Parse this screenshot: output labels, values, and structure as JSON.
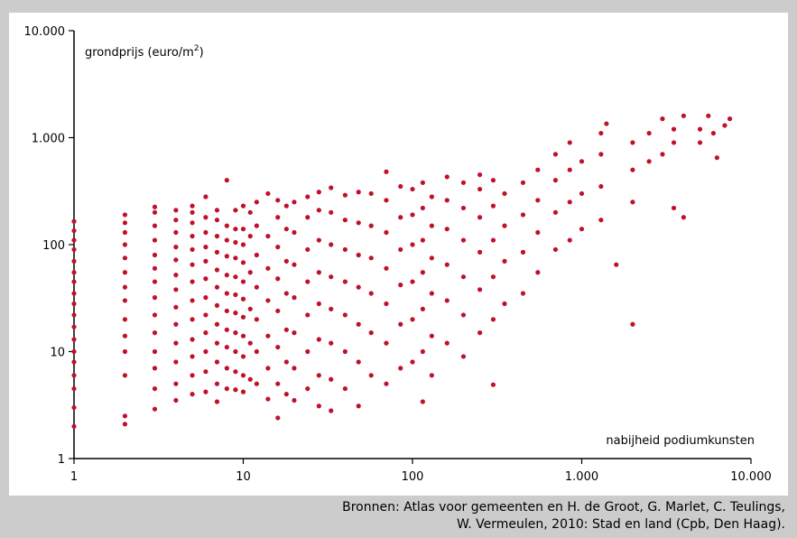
{
  "chart_data": {
    "type": "scatter",
    "x_scale": "log",
    "y_scale": "log",
    "xlim": [
      1,
      10000
    ],
    "ylim": [
      1,
      10000
    ],
    "x_ticks": [
      1,
      10,
      100,
      1000,
      10000
    ],
    "y_ticks": [
      1,
      10,
      100,
      1000,
      10000
    ],
    "x_tick_labels": [
      "1",
      "10",
      "100",
      "1.000",
      "10.000"
    ],
    "y_tick_labels": [
      "1",
      "10",
      "100",
      "1.000",
      "10.000"
    ],
    "ylabel": "grondprijs (euro/m",
    "ylabel_sup": "2",
    "ylabel_end": ")",
    "xlabel": "nabijheid podiumkunsten",
    "grid": false,
    "marker_color": "#c0102a",
    "points": [
      [
        1,
        2.0
      ],
      [
        1,
        3.0
      ],
      [
        1,
        4.5
      ],
      [
        1,
        6
      ],
      [
        1,
        8
      ],
      [
        1,
        10
      ],
      [
        1,
        13
      ],
      [
        1,
        17
      ],
      [
        1,
        22
      ],
      [
        1,
        28
      ],
      [
        1,
        35
      ],
      [
        1,
        45
      ],
      [
        1,
        55
      ],
      [
        1,
        70
      ],
      [
        1,
        90
      ],
      [
        1,
        110
      ],
      [
        1,
        135
      ],
      [
        1,
        165
      ],
      [
        2,
        2.1
      ],
      [
        2,
        2.5
      ],
      [
        2,
        6
      ],
      [
        2,
        10
      ],
      [
        2,
        14
      ],
      [
        2,
        20
      ],
      [
        2,
        30
      ],
      [
        2,
        40
      ],
      [
        2,
        55
      ],
      [
        2,
        75
      ],
      [
        2,
        100
      ],
      [
        2,
        130
      ],
      [
        2,
        160
      ],
      [
        2,
        190
      ],
      [
        3,
        2.9
      ],
      [
        3,
        4.5
      ],
      [
        3,
        7
      ],
      [
        3,
        10
      ],
      [
        3,
        15
      ],
      [
        3,
        22
      ],
      [
        3,
        32
      ],
      [
        3,
        45
      ],
      [
        3,
        60
      ],
      [
        3,
        80
      ],
      [
        3,
        110
      ],
      [
        3,
        150
      ],
      [
        3,
        200
      ],
      [
        3,
        225
      ],
      [
        4,
        3.5
      ],
      [
        4,
        5
      ],
      [
        4,
        8
      ],
      [
        4,
        12
      ],
      [
        4,
        18
      ],
      [
        4,
        26
      ],
      [
        4,
        38
      ],
      [
        4,
        52
      ],
      [
        4,
        72
      ],
      [
        4,
        95
      ],
      [
        4,
        130
      ],
      [
        4,
        170
      ],
      [
        4,
        210
      ],
      [
        5,
        4
      ],
      [
        5,
        6
      ],
      [
        5,
        9
      ],
      [
        5,
        13
      ],
      [
        5,
        20
      ],
      [
        5,
        30
      ],
      [
        5,
        45
      ],
      [
        5,
        65
      ],
      [
        5,
        90
      ],
      [
        5,
        120
      ],
      [
        5,
        160
      ],
      [
        5,
        200
      ],
      [
        5,
        230
      ],
      [
        6,
        4.2
      ],
      [
        6,
        6.5
      ],
      [
        6,
        10
      ],
      [
        6,
        15
      ],
      [
        6,
        22
      ],
      [
        6,
        32
      ],
      [
        6,
        48
      ],
      [
        6,
        70
      ],
      [
        6,
        95
      ],
      [
        6,
        130
      ],
      [
        6,
        180
      ],
      [
        6,
        280
      ],
      [
        7,
        3.4
      ],
      [
        7,
        5
      ],
      [
        7,
        8
      ],
      [
        7,
        12
      ],
      [
        7,
        18
      ],
      [
        7,
        27
      ],
      [
        7,
        40
      ],
      [
        7,
        58
      ],
      [
        7,
        85
      ],
      [
        7,
        120
      ],
      [
        7,
        170
      ],
      [
        7,
        210
      ],
      [
        8,
        4.5
      ],
      [
        8,
        7
      ],
      [
        8,
        11
      ],
      [
        8,
        16
      ],
      [
        8,
        24
      ],
      [
        8,
        35
      ],
      [
        8,
        52
      ],
      [
        8,
        78
      ],
      [
        8,
        110
      ],
      [
        8,
        150
      ],
      [
        8,
        400
      ],
      [
        9,
        4.4
      ],
      [
        9,
        6.5
      ],
      [
        9,
        10
      ],
      [
        9,
        15
      ],
      [
        9,
        23
      ],
      [
        9,
        34
      ],
      [
        9,
        50
      ],
      [
        9,
        75
      ],
      [
        9,
        105
      ],
      [
        9,
        140
      ],
      [
        9,
        210
      ],
      [
        10,
        4.2
      ],
      [
        10,
        6
      ],
      [
        10,
        9
      ],
      [
        10,
        14
      ],
      [
        10,
        21
      ],
      [
        10,
        31
      ],
      [
        10,
        45
      ],
      [
        10,
        68
      ],
      [
        10,
        100
      ],
      [
        10,
        140
      ],
      [
        10,
        230
      ],
      [
        11,
        5.5
      ],
      [
        11,
        12
      ],
      [
        11,
        25
      ],
      [
        11,
        55
      ],
      [
        11,
        120
      ],
      [
        11,
        200
      ],
      [
        12,
        5
      ],
      [
        12,
        10
      ],
      [
        12,
        20
      ],
      [
        12,
        40
      ],
      [
        12,
        80
      ],
      [
        12,
        150
      ],
      [
        12,
        250
      ],
      [
        14,
        3.6
      ],
      [
        14,
        7
      ],
      [
        14,
        14
      ],
      [
        14,
        30
      ],
      [
        14,
        60
      ],
      [
        14,
        120
      ],
      [
        14,
        300
      ],
      [
        16,
        2.4
      ],
      [
        16,
        5
      ],
      [
        16,
        11
      ],
      [
        16,
        24
      ],
      [
        16,
        48
      ],
      [
        16,
        95
      ],
      [
        16,
        180
      ],
      [
        16,
        260
      ],
      [
        18,
        4
      ],
      [
        18,
        8
      ],
      [
        18,
        16
      ],
      [
        18,
        35
      ],
      [
        18,
        70
      ],
      [
        18,
        140
      ],
      [
        18,
        230
      ],
      [
        20,
        3.5
      ],
      [
        20,
        7
      ],
      [
        20,
        15
      ],
      [
        20,
        32
      ],
      [
        20,
        65
      ],
      [
        20,
        130
      ],
      [
        20,
        250
      ],
      [
        24,
        4.5
      ],
      [
        24,
        10
      ],
      [
        24,
        22
      ],
      [
        24,
        45
      ],
      [
        24,
        90
      ],
      [
        24,
        180
      ],
      [
        24,
        280
      ],
      [
        28,
        3.1
      ],
      [
        28,
        6
      ],
      [
        28,
        13
      ],
      [
        28,
        28
      ],
      [
        28,
        55
      ],
      [
        28,
        110
      ],
      [
        28,
        210
      ],
      [
        28,
        310
      ],
      [
        33,
        2.8
      ],
      [
        33,
        5.5
      ],
      [
        33,
        12
      ],
      [
        33,
        25
      ],
      [
        33,
        50
      ],
      [
        33,
        100
      ],
      [
        33,
        200
      ],
      [
        33,
        340
      ],
      [
        40,
        4.5
      ],
      [
        40,
        10
      ],
      [
        40,
        22
      ],
      [
        40,
        45
      ],
      [
        40,
        90
      ],
      [
        40,
        170
      ],
      [
        40,
        290
      ],
      [
        48,
        3.1
      ],
      [
        48,
        8
      ],
      [
        48,
        18
      ],
      [
        48,
        40
      ],
      [
        48,
        80
      ],
      [
        48,
        160
      ],
      [
        48,
        310
      ],
      [
        57,
        6
      ],
      [
        57,
        15
      ],
      [
        57,
        35
      ],
      [
        57,
        75
      ],
      [
        57,
        150
      ],
      [
        57,
        300
      ],
      [
        70,
        5
      ],
      [
        70,
        12
      ],
      [
        70,
        28
      ],
      [
        70,
        60
      ],
      [
        70,
        130
      ],
      [
        70,
        260
      ],
      [
        70,
        480
      ],
      [
        85,
        7
      ],
      [
        85,
        18
      ],
      [
        85,
        42
      ],
      [
        85,
        90
      ],
      [
        85,
        180
      ],
      [
        85,
        350
      ],
      [
        100,
        8
      ],
      [
        100,
        20
      ],
      [
        100,
        45
      ],
      [
        100,
        100
      ],
      [
        100,
        190
      ],
      [
        100,
        330
      ],
      [
        115,
        3.4
      ],
      [
        115,
        10
      ],
      [
        115,
        25
      ],
      [
        115,
        55
      ],
      [
        115,
        110
      ],
      [
        115,
        220
      ],
      [
        115,
        380
      ],
      [
        130,
        6
      ],
      [
        130,
        14
      ],
      [
        130,
        35
      ],
      [
        130,
        75
      ],
      [
        130,
        150
      ],
      [
        130,
        280
      ],
      [
        160,
        12
      ],
      [
        160,
        30
      ],
      [
        160,
        65
      ],
      [
        160,
        140
      ],
      [
        160,
        260
      ],
      [
        160,
        430
      ],
      [
        200,
        9
      ],
      [
        200,
        22
      ],
      [
        200,
        50
      ],
      [
        200,
        110
      ],
      [
        200,
        220
      ],
      [
        200,
        380
      ],
      [
        250,
        15
      ],
      [
        250,
        38
      ],
      [
        250,
        85
      ],
      [
        250,
        180
      ],
      [
        250,
        330
      ],
      [
        250,
        450
      ],
      [
        300,
        4.9
      ],
      [
        300,
        20
      ],
      [
        300,
        50
      ],
      [
        300,
        110
      ],
      [
        300,
        230
      ],
      [
        300,
        400
      ],
      [
        350,
        28
      ],
      [
        350,
        70
      ],
      [
        350,
        150
      ],
      [
        350,
        300
      ],
      [
        450,
        35
      ],
      [
        450,
        85
      ],
      [
        450,
        190
      ],
      [
        450,
        380
      ],
      [
        550,
        55
      ],
      [
        550,
        130
      ],
      [
        550,
        260
      ],
      [
        550,
        500
      ],
      [
        700,
        90
      ],
      [
        700,
        200
      ],
      [
        700,
        400
      ],
      [
        700,
        700
      ],
      [
        850,
        110
      ],
      [
        850,
        250
      ],
      [
        850,
        500
      ],
      [
        850,
        900
      ],
      [
        1000,
        140
      ],
      [
        1000,
        300
      ],
      [
        1000,
        600
      ],
      [
        1300,
        170
      ],
      [
        1300,
        350
      ],
      [
        1300,
        700
      ],
      [
        1300,
        1100
      ],
      [
        1400,
        1350
      ],
      [
        1600,
        65
      ],
      [
        2000,
        18
      ],
      [
        2000,
        250
      ],
      [
        2000,
        500
      ],
      [
        2000,
        900
      ],
      [
        2500,
        600
      ],
      [
        2500,
        1100
      ],
      [
        3000,
        700
      ],
      [
        3000,
        1500
      ],
      [
        3500,
        220
      ],
      [
        3500,
        900
      ],
      [
        3500,
        1200
      ],
      [
        4000,
        180
      ],
      [
        4000,
        1600
      ],
      [
        5000,
        1200
      ],
      [
        5000,
        900
      ],
      [
        5600,
        1600
      ],
      [
        6000,
        1100
      ],
      [
        6300,
        650
      ],
      [
        7000,
        1300
      ],
      [
        7500,
        1500
      ]
    ]
  },
  "source": {
    "line1": "Bronnen: Atlas voor gemeenten en H. de Groot, G. Marlet, C. Teulings,",
    "line2": "W. Vermeulen, 2010: Stad en land (Cpb, Den Haag)."
  }
}
